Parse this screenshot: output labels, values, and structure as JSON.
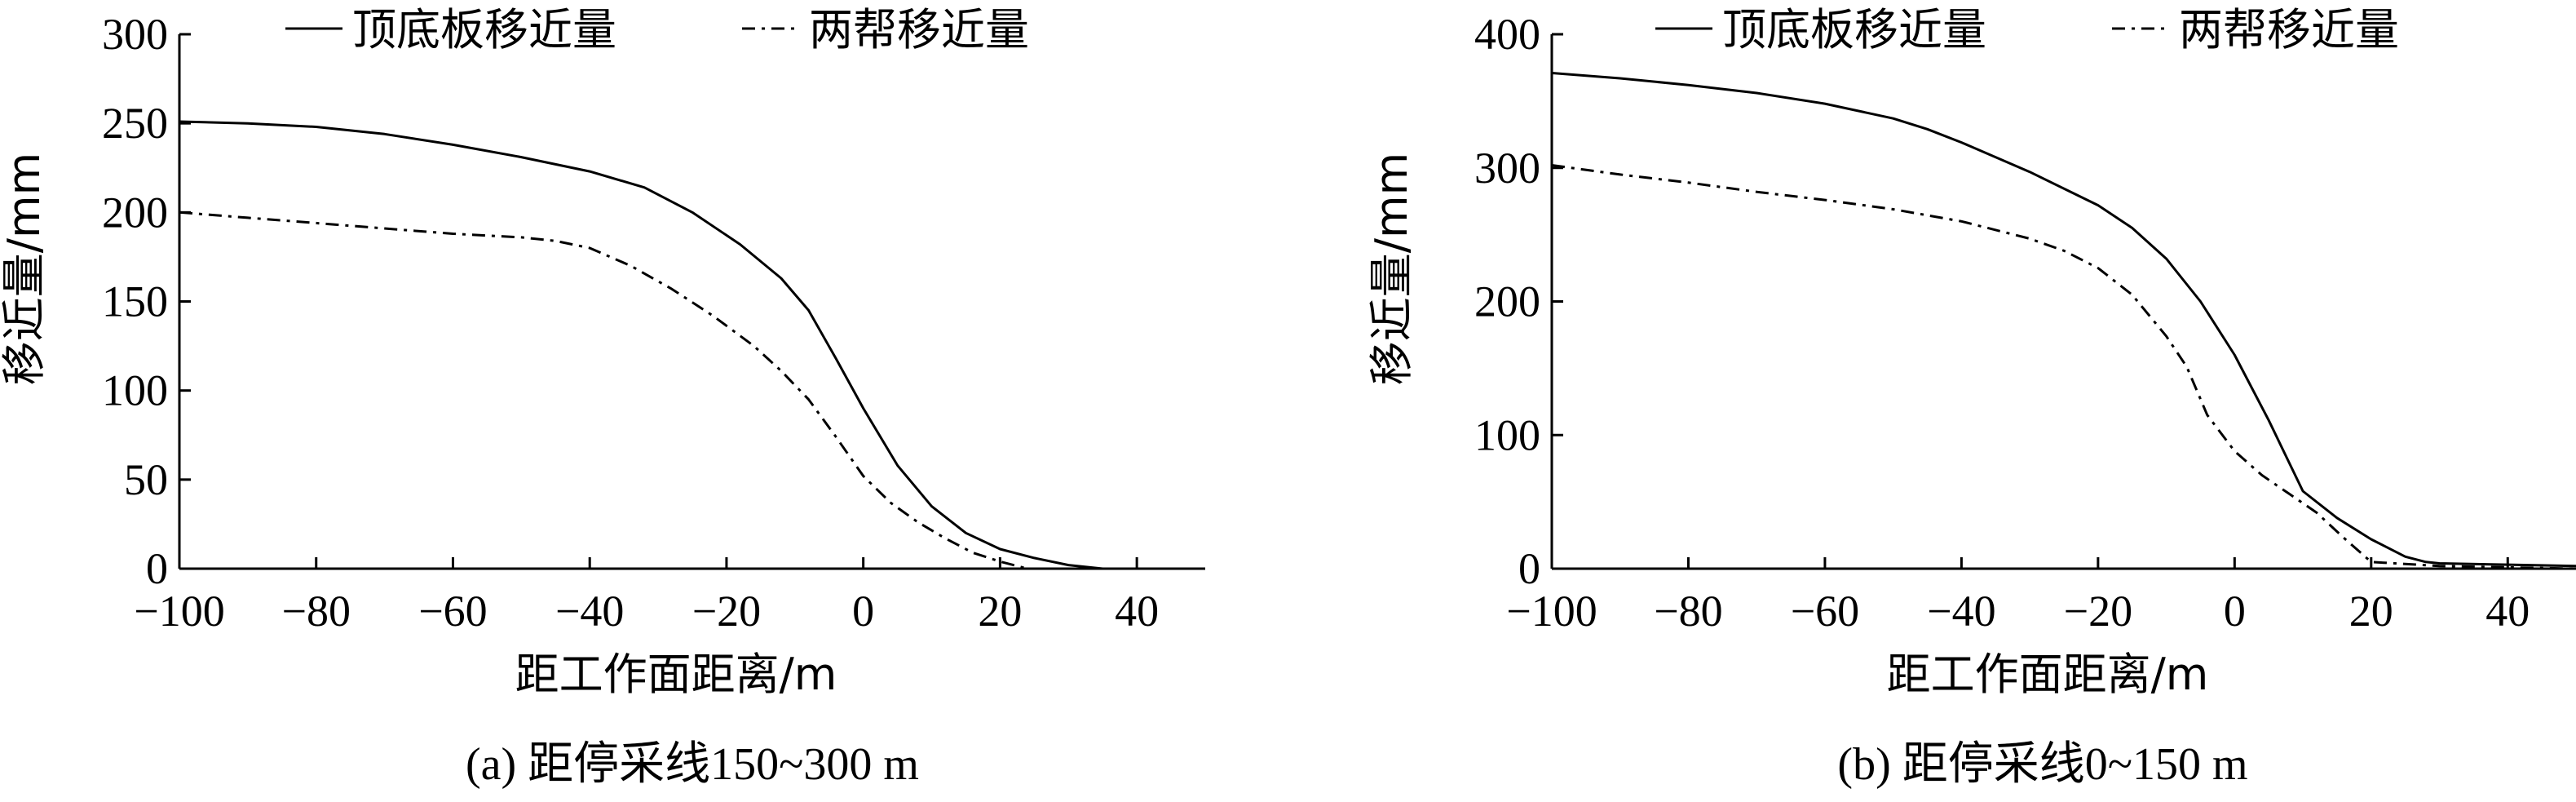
{
  "chart_data": [
    {
      "type": "line",
      "caption": "(a) 距停采线150~300 m",
      "xlabel": "距工作面距离/m",
      "ylabel": "移近量/mm",
      "xlim": [
        -100,
        50
      ],
      "ylim": [
        0,
        300
      ],
      "xticks": [
        "−100",
        "−80",
        "−60",
        "−40",
        "−20",
        "0",
        "20",
        "40"
      ],
      "xtick_values": [
        -100,
        -80,
        -60,
        -40,
        -20,
        0,
        20,
        40
      ],
      "yticks": [
        "0",
        "50",
        "100",
        "150",
        "200",
        "250",
        "300"
      ],
      "ytick_values": [
        0,
        50,
        100,
        150,
        200,
        250,
        300
      ],
      "legend_position": "top",
      "series": [
        {
          "name": "顶底板移近量",
          "style": "solid",
          "x": [
            -100,
            -90,
            -80,
            -70,
            -60,
            -50,
            -40,
            -32,
            -25,
            -18,
            -12,
            -8,
            -4,
            0,
            5,
            10,
            15,
            20,
            25,
            30,
            35
          ],
          "y": [
            251,
            250,
            248,
            244,
            238,
            231,
            223,
            214,
            200,
            182,
            163,
            145,
            118,
            90,
            58,
            35,
            20,
            11,
            6,
            2,
            0
          ]
        },
        {
          "name": "两帮移近量",
          "style": "dashdot",
          "x": [
            -100,
            -90,
            -80,
            -70,
            -60,
            -50,
            -45,
            -40,
            -34,
            -28,
            -22,
            -16,
            -12,
            -8,
            -4,
            0,
            4,
            8,
            12,
            16,
            20,
            24
          ],
          "y": [
            200,
            197,
            194,
            191,
            188,
            186,
            184,
            180,
            170,
            157,
            142,
            125,
            111,
            95,
            74,
            52,
            37,
            26,
            17,
            9,
            4,
            0
          ]
        }
      ]
    },
    {
      "type": "line",
      "caption": "(b) 距停采线0~150 m",
      "xlabel": "距工作面距离/m",
      "ylabel": "移近量/mm",
      "xlim": [
        -100,
        50
      ],
      "ylim": [
        0,
        400
      ],
      "xticks": [
        "−100",
        "−80",
        "−60",
        "−40",
        "−20",
        "0",
        "20",
        "40"
      ],
      "xtick_values": [
        -100,
        -80,
        -60,
        -40,
        -20,
        0,
        20,
        40
      ],
      "yticks": [
        "0",
        "100",
        "200",
        "300",
        "400"
      ],
      "ytick_values": [
        0,
        100,
        200,
        300,
        400
      ],
      "legend_position": "top",
      "series": [
        {
          "name": "顶底板移近量",
          "style": "solid",
          "x": [
            -100,
            -90,
            -80,
            -70,
            -60,
            -50,
            -45,
            -40,
            -30,
            -20,
            -15,
            -10,
            -5,
            0,
            5,
            10,
            15,
            20,
            25,
            28,
            30,
            40,
            50
          ],
          "y": [
            371,
            367,
            362,
            356,
            348,
            337,
            329,
            319,
            297,
            272,
            255,
            232,
            200,
            160,
            111,
            58,
            38,
            22,
            9,
            5,
            4,
            3,
            2
          ]
        },
        {
          "name": "两帮移近量",
          "style": "dashdot",
          "x": [
            -100,
            -90,
            -80,
            -70,
            -60,
            -50,
            -40,
            -30,
            -25,
            -20,
            -15,
            -10,
            -7,
            -4,
            0,
            4,
            8,
            12,
            16,
            20,
            30,
            40,
            50
          ],
          "y": [
            302,
            295,
            289,
            282,
            276,
            269,
            260,
            247,
            238,
            225,
            205,
            174,
            151,
            115,
            88,
            70,
            56,
            42,
            23,
            5,
            2,
            1,
            0
          ]
        }
      ]
    }
  ]
}
